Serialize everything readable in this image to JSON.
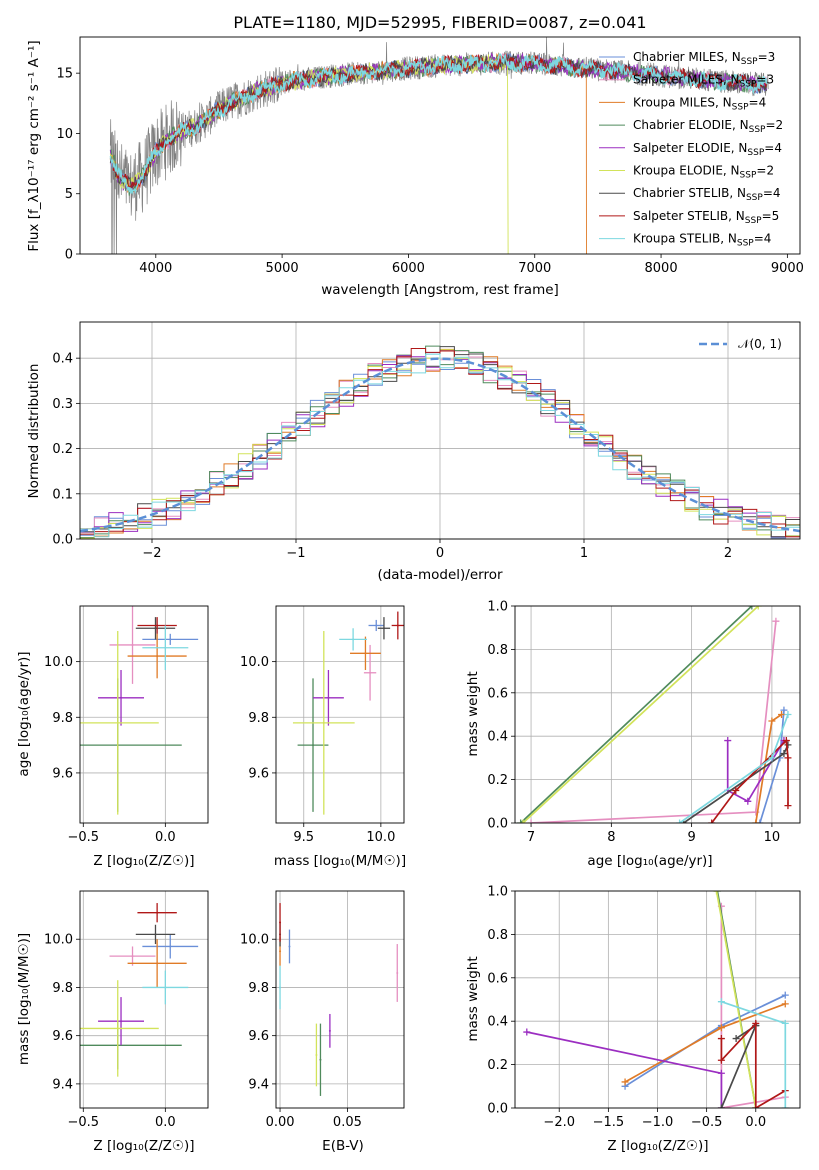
{
  "figure": {
    "title": "PLATE=1180, MJD=52995, FIBERID=0087, z=0.041"
  },
  "colors": {
    "series": [
      "#6a8fd8",
      "#e58fc0",
      "#e07b27",
      "#4f8a5c",
      "#9b2ec1",
      "#d2e35a",
      "#4a4a4a",
      "#b01818",
      "#7dd8e0"
    ],
    "observed": "#808080",
    "normal_curve": "#5b8fd6",
    "grid": "#b0b0b0"
  },
  "legend_spectrum": [
    {
      "label": "Chabrier MILES, N",
      "sub": "SSP",
      "post": "=3"
    },
    {
      "label": "Salpeter MILES, N",
      "sub": "SSP",
      "post": "=3"
    },
    {
      "label": "Kroupa MILES, N",
      "sub": "SSP",
      "post": "=4"
    },
    {
      "label": "Chabrier ELODIE, N",
      "sub": "SSP",
      "post": "=2"
    },
    {
      "label": "Salpeter ELODIE, N",
      "sub": "SSP",
      "post": "=4"
    },
    {
      "label": "Kroupa ELODIE, N",
      "sub": "SSP",
      "post": "=2"
    },
    {
      "label": "Chabrier STELIB, N",
      "sub": "SSP",
      "post": "=4"
    },
    {
      "label": "Salpeter STELIB, N",
      "sub": "SSP",
      "post": "=5"
    },
    {
      "label": "Kroupa STELIB, N",
      "sub": "SSP",
      "post": "=4"
    }
  ],
  "legend_normal": "𝒩(0, 1)",
  "axes": {
    "spec_x": "wavelength [Angstrom, rest frame]",
    "spec_y": "Flux [f_λ10⁻¹⁷ erg cm⁻² s⁻¹ A⁻¹]",
    "hist_x": "(data-model)/error",
    "hist_y": "Normed distribution",
    "age_y": "age  [log₁₀(age/yr)]",
    "Z_x": "Z [log₁₀(Z/Z☉)]",
    "mass_x": "mass [log₁₀(M/M☉)]",
    "mass_y": "mass [log₁₀(M/M☉)]",
    "ebv_x": "E(B-V)",
    "mw_y": "mass weight",
    "age_x": "age  [log₁₀(age/yr)]"
  },
  "chart_data": [
    {
      "type": "line",
      "id": "spectrum",
      "title": "PLATE=1180, MJD=52995, FIBERID=0087, z=0.041",
      "xlim": [
        3400,
        9100
      ],
      "ylim": [
        0,
        18
      ],
      "xticks": [
        4000,
        5000,
        6000,
        7000,
        8000,
        9000
      ],
      "yticks": [
        0,
        5,
        10,
        15
      ],
      "continuum": {
        "x": [
          3650,
          3700,
          3800,
          3900,
          4000,
          4100,
          4200,
          4300,
          4400,
          4500,
          4600,
          4700,
          4800,
          4900,
          5000,
          5200,
          5400,
          5600,
          5800,
          6000,
          6200,
          6400,
          6600,
          6800,
          7000,
          7200,
          7400,
          7600,
          7800,
          8000,
          8200,
          8400,
          8600,
          8850
        ],
        "y": [
          8.0,
          6.5,
          5.5,
          6.5,
          8.5,
          9.5,
          10.2,
          10.5,
          11.2,
          12.0,
          12.6,
          13.0,
          13.5,
          13.8,
          14.2,
          14.5,
          14.8,
          15.0,
          15.2,
          15.4,
          15.6,
          15.7,
          15.8,
          15.9,
          15.8,
          15.6,
          15.4,
          15.2,
          15.0,
          14.8,
          14.6,
          14.4,
          14.2,
          14.0
        ]
      },
      "drops": [
        {
          "series": 5,
          "x": 6790
        },
        {
          "series": 2,
          "x": 7410
        }
      ]
    },
    {
      "type": "bar",
      "id": "residual_histogram",
      "xlim": [
        -2.5,
        2.5
      ],
      "ylim": [
        0,
        0.48
      ],
      "xticks": [
        -2,
        -1,
        0,
        1,
        2
      ],
      "yticks": [
        0.0,
        0.1,
        0.2,
        0.3,
        0.4
      ],
      "bin_width": 0.1,
      "normal": {
        "mean": 0,
        "sigma": 1
      }
    },
    {
      "type": "scatter",
      "id": "Z_vs_age",
      "xlim": [
        -0.52,
        0.26
      ],
      "ylim": [
        9.42,
        10.2
      ],
      "xticks": [
        -0.5,
        0.0
      ],
      "yticks": [
        9.6,
        9.8,
        10.0
      ],
      "points": [
        {
          "s": 0,
          "x": 0.03,
          "xerr": 0.17,
          "y": 10.08,
          "yerr": 0.02
        },
        {
          "s": 1,
          "x": -0.2,
          "xerr": 0.14,
          "y": 10.06,
          "yerr": 0.14
        },
        {
          "s": 2,
          "x": -0.05,
          "xerr": 0.18,
          "y": 10.02,
          "yerr": 0.08
        },
        {
          "s": 3,
          "x": -0.29,
          "xerr": 0.39,
          "y": 9.7,
          "yerr": 0.24
        },
        {
          "s": 4,
          "x": -0.27,
          "xerr": 0.14,
          "y": 9.87,
          "yerr": 0.1
        },
        {
          "s": 5,
          "x": -0.29,
          "xerr": 0.25,
          "y": 9.78,
          "yerr": 0.33
        },
        {
          "s": 6,
          "x": -0.06,
          "xerr": 0.12,
          "y": 10.12,
          "yerr": 0.04
        },
        {
          "s": 7,
          "x": -0.05,
          "xerr": 0.12,
          "y": 10.13,
          "yerr": 0.03
        },
        {
          "s": 8,
          "x": 0.0,
          "xerr": 0.14,
          "y": 10.05,
          "yerr": 0.08
        }
      ]
    },
    {
      "type": "scatter",
      "id": "mass_vs_age",
      "xlim": [
        9.32,
        10.15
      ],
      "ylim": [
        9.42,
        10.2
      ],
      "xticks": [
        9.5,
        10.0
      ],
      "yticks": [
        9.6,
        9.8,
        10.0
      ],
      "points": [
        {
          "s": 0,
          "x": 9.97,
          "xerr": 0.05,
          "y": 10.13,
          "yerr": 0.02
        },
        {
          "s": 1,
          "x": 9.93,
          "xerr": 0.04,
          "y": 9.96,
          "yerr": 0.1
        },
        {
          "s": 2,
          "x": 9.9,
          "xerr": 0.1,
          "y": 10.03,
          "yerr": 0.06
        },
        {
          "s": 3,
          "x": 9.56,
          "xerr": 0.1,
          "y": 9.7,
          "yerr": 0.24
        },
        {
          "s": 4,
          "x": 9.66,
          "xerr": 0.1,
          "y": 9.87,
          "yerr": 0.1
        },
        {
          "s": 5,
          "x": 9.63,
          "xerr": 0.2,
          "y": 9.78,
          "yerr": 0.33
        },
        {
          "s": 6,
          "x": 10.02,
          "xerr": 0.04,
          "y": 10.12,
          "yerr": 0.04
        },
        {
          "s": 7,
          "x": 10.11,
          "xerr": 0.04,
          "y": 10.13,
          "yerr": 0.05
        },
        {
          "s": 8,
          "x": 9.82,
          "xerr": 0.09,
          "y": 10.08,
          "yerr": 0.04
        }
      ]
    },
    {
      "type": "line",
      "id": "age_vs_mass_weight",
      "xlim": [
        6.8,
        10.35
      ],
      "ylim": [
        0,
        1
      ],
      "xticks": [
        7,
        8,
        9,
        10
      ],
      "yticks": [
        0.0,
        0.2,
        0.4,
        0.6,
        0.8,
        1.0
      ],
      "series": [
        {
          "s": 0,
          "x": [
            9.85,
            10.1,
            10.15
          ],
          "y": [
            0.0,
            0.3,
            0.52
          ]
        },
        {
          "s": 1,
          "x": [
            7.0,
            9.8,
            10.05
          ],
          "y": [
            0.0,
            0.05,
            0.93
          ]
        },
        {
          "s": 2,
          "x": [
            9.8,
            10.0,
            10.12
          ],
          "y": [
            0.0,
            0.47,
            0.5
          ]
        },
        {
          "s": 3,
          "x": [
            6.87,
            9.75
          ],
          "y": [
            0.0,
            1.0
          ]
        },
        {
          "s": 4,
          "x": [
            9.45,
            9.45,
            9.7,
            10.15
          ],
          "y": [
            0.38,
            0.15,
            0.1,
            0.38
          ]
        },
        {
          "s": 5,
          "x": [
            6.9,
            9.83
          ],
          "y": [
            0.0,
            1.0
          ]
        },
        {
          "s": 6,
          "x": [
            8.9,
            10.15,
            10.2
          ],
          "y": [
            0.0,
            0.32,
            0.36
          ]
        },
        {
          "s": 7,
          "x": [
            9.25,
            9.55,
            10.18,
            10.2,
            10.2
          ],
          "y": [
            0.0,
            0.15,
            0.38,
            0.3,
            0.08
          ]
        },
        {
          "s": 8,
          "x": [
            8.85,
            10.0,
            10.2
          ],
          "y": [
            0.0,
            0.3,
            0.5
          ]
        }
      ]
    },
    {
      "type": "scatter",
      "id": "Z_vs_mass",
      "xlim": [
        -0.52,
        0.26
      ],
      "ylim": [
        9.3,
        10.2
      ],
      "xticks": [
        -0.5,
        0.0
      ],
      "yticks": [
        9.4,
        9.6,
        9.8,
        10.0
      ],
      "points": [
        {
          "s": 0,
          "x": 0.03,
          "xerr": 0.17,
          "y": 9.97,
          "yerr": 0.05
        },
        {
          "s": 1,
          "x": -0.2,
          "xerr": 0.14,
          "y": 9.93,
          "yerr": 0.04
        },
        {
          "s": 2,
          "x": -0.05,
          "xerr": 0.18,
          "y": 9.9,
          "yerr": 0.1
        },
        {
          "s": 3,
          "x": -0.29,
          "xerr": 0.39,
          "y": 9.56,
          "yerr": 0.1
        },
        {
          "s": 4,
          "x": -0.27,
          "xerr": 0.14,
          "y": 9.66,
          "yerr": 0.1
        },
        {
          "s": 5,
          "x": -0.29,
          "xerr": 0.25,
          "y": 9.63,
          "yerr": 0.2
        },
        {
          "s": 6,
          "x": -0.06,
          "xerr": 0.12,
          "y": 10.02,
          "yerr": 0.04
        },
        {
          "s": 7,
          "x": -0.05,
          "xerr": 0.12,
          "y": 10.11,
          "yerr": 0.04
        },
        {
          "s": 8,
          "x": 0.0,
          "xerr": 0.14,
          "y": 9.8,
          "yerr": 0.07
        }
      ]
    },
    {
      "type": "scatter",
      "id": "ebv_vs_mass",
      "xlim": [
        -0.003,
        0.092
      ],
      "ylim": [
        9.3,
        10.2
      ],
      "xticks": [
        0.0,
        0.05
      ],
      "yticks": [
        9.4,
        9.6,
        9.8,
        10.0
      ],
      "points": [
        {
          "s": 0,
          "x": 0.007,
          "y": 9.97,
          "yerr": 0.07
        },
        {
          "s": 1,
          "x": 0.087,
          "y": 9.86,
          "yerr": 0.12
        },
        {
          "s": 2,
          "x": 0.0,
          "y": 9.95,
          "yerr": 0.06
        },
        {
          "s": 3,
          "x": 0.03,
          "y": 9.5,
          "yerr": 0.15
        },
        {
          "s": 4,
          "x": 0.037,
          "y": 9.62,
          "yerr": 0.07
        },
        {
          "s": 5,
          "x": 0.027,
          "y": 9.52,
          "yerr": 0.13
        },
        {
          "s": 6,
          "x": 0.0,
          "y": 10.02,
          "yerr": 0.05
        },
        {
          "s": 7,
          "x": 0.0,
          "y": 10.07,
          "yerr": 0.08
        },
        {
          "s": 8,
          "x": 0.0,
          "y": 9.8,
          "yerr": 0.09
        }
      ]
    },
    {
      "type": "line",
      "id": "Z_vs_mass_weight",
      "xlim": [
        -2.45,
        0.45
      ],
      "ylim": [
        0,
        1
      ],
      "xticks": [
        -2.0,
        -1.5,
        -1.0,
        -0.5,
        0.0
      ],
      "yticks": [
        0.0,
        0.2,
        0.4,
        0.6,
        0.8,
        1.0
      ],
      "series": [
        {
          "s": 0,
          "x": [
            -1.33,
            -0.35,
            0.3
          ],
          "y": [
            0.1,
            0.38,
            0.52
          ]
        },
        {
          "s": 1,
          "x": [
            -0.35,
            -0.35,
            0.3
          ],
          "y": [
            0.93,
            0.0,
            0.05
          ]
        },
        {
          "s": 2,
          "x": [
            -1.33,
            -0.35,
            0.3
          ],
          "y": [
            0.12,
            0.37,
            0.48
          ]
        },
        {
          "s": 3,
          "x": [
            -0.39,
            0.0
          ],
          "y": [
            1.0,
            0.0
          ]
        },
        {
          "s": 4,
          "x": [
            -2.33,
            -0.35,
            -0.35
          ],
          "y": [
            0.35,
            0.16,
            0.0
          ]
        },
        {
          "s": 5,
          "x": [
            -0.4,
            0.0
          ],
          "y": [
            1.0,
            0.0
          ]
        },
        {
          "s": 6,
          "x": [
            -0.35,
            0.0,
            0.0,
            -0.2
          ],
          "y": [
            0.0,
            0.38,
            0.38,
            0.32
          ]
        },
        {
          "s": 7,
          "x": [
            -0.35,
            -0.35,
            0.0,
            0.0,
            0.3
          ],
          "y": [
            0.32,
            0.22,
            0.39,
            0.0,
            0.08
          ]
        },
        {
          "s": 8,
          "x": [
            -0.35,
            0.3,
            0.3
          ],
          "y": [
            0.49,
            0.39,
            0.0
          ]
        }
      ]
    }
  ]
}
